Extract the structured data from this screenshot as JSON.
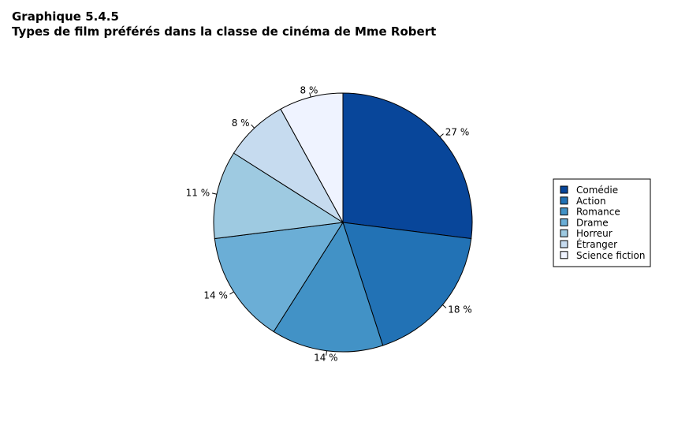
{
  "header": {
    "number": "Graphique 5.4.5",
    "title": "Types de film préférés dans la classe de cinéma de Mme Robert"
  },
  "chart_data": {
    "type": "pie",
    "categories": [
      "Comédie",
      "Action",
      "Romance",
      "Drame",
      "Horreur",
      "Étranger",
      "Science fiction"
    ],
    "values": [
      27,
      18,
      14,
      14,
      11,
      8,
      8
    ],
    "value_labels": [
      "27 %",
      "18 %",
      "14 %",
      "14 %",
      "11 %",
      "8 %",
      "8 %"
    ],
    "colors": [
      "#08469a",
      "#2272b5",
      "#4292c6",
      "#6baed6",
      "#9ecae1",
      "#c6dbef",
      "#eff3ff"
    ],
    "start": "12 o'clock",
    "direction": "clockwise",
    "legend": "right"
  }
}
